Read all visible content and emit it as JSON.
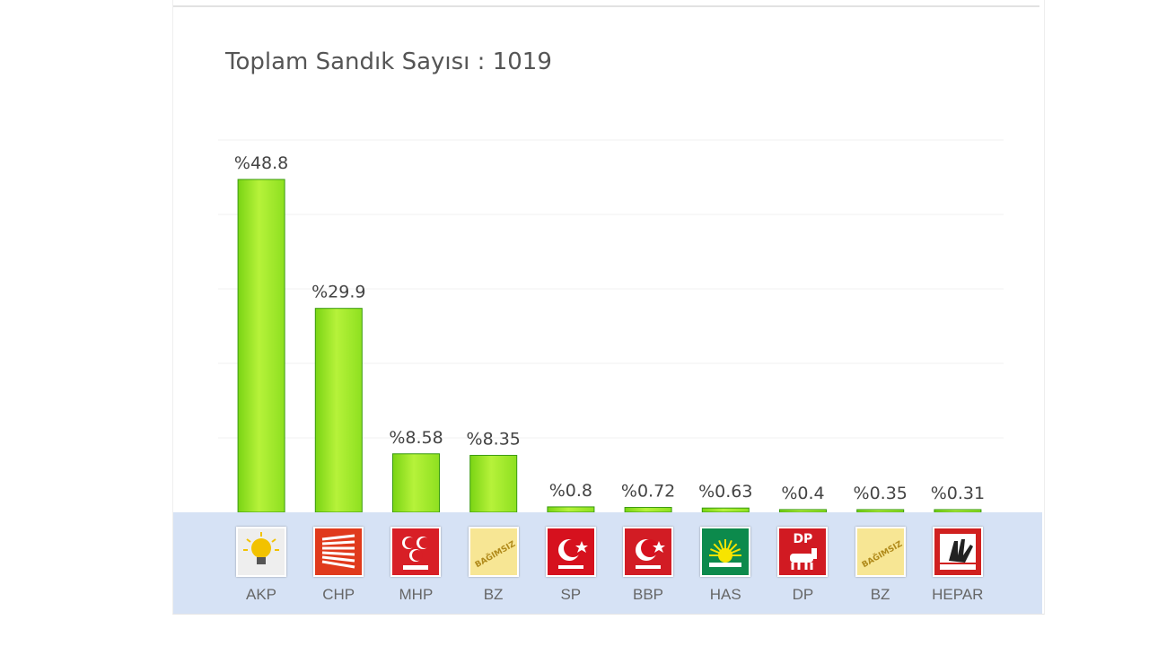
{
  "header": {
    "title": "Toplam Sandık Sayısı : 1019"
  },
  "colors": {
    "bar": "#8ee020",
    "bar_border": "#3a9a10",
    "band": "#d6e2f5"
  },
  "chart_data": {
    "type": "bar",
    "title": "Toplam Sandık Sayısı : 1019",
    "categories": [
      "AKP",
      "CHP",
      "MHP",
      "BZ",
      "SP",
      "BBP",
      "HAS",
      "DP",
      "BZ",
      "HEPAR"
    ],
    "values": [
      48.8,
      29.9,
      8.58,
      8.35,
      0.8,
      0.72,
      0.63,
      0.4,
      0.35,
      0.31
    ],
    "labels": [
      "%48.8",
      "%29.9",
      "%8.58",
      "%8.35",
      "%0.8",
      "%0.72",
      "%0.63",
      "%0.4",
      "%0.35",
      "%0.31"
    ],
    "xlabel": "",
    "ylabel": "",
    "ylim": [
      0,
      48.8
    ],
    "grid": true,
    "legend": "none"
  },
  "parties": [
    {
      "name": "AKP",
      "logo_bg": "#eeeeee",
      "logo_icon": "lightbulb-icon"
    },
    {
      "name": "CHP",
      "logo_bg": "#e03a1c",
      "logo_icon": "six-arrows-icon"
    },
    {
      "name": "MHP",
      "logo_bg": "#d81f26",
      "logo_icon": "three-crescents-icon"
    },
    {
      "name": "BZ",
      "logo_bg": "#f7e694",
      "logo_icon": "independent-icon"
    },
    {
      "name": "SP",
      "logo_bg": "#d6111e",
      "logo_icon": "crescent-star-icon"
    },
    {
      "name": "BBP",
      "logo_bg": "#d21c24",
      "logo_icon": "crescent-star-icon"
    },
    {
      "name": "HAS",
      "logo_bg": "#0c8a4c",
      "logo_icon": "sun-icon"
    },
    {
      "name": "DP",
      "logo_bg": "#d11a22",
      "logo_icon": "horse-icon",
      "logo_text": "DP"
    },
    {
      "name": "BZ",
      "logo_bg": "#f7e694",
      "logo_icon": "independent-icon"
    },
    {
      "name": "HEPAR",
      "logo_bg": "#d0201f",
      "logo_icon": "hand-icon"
    }
  ]
}
